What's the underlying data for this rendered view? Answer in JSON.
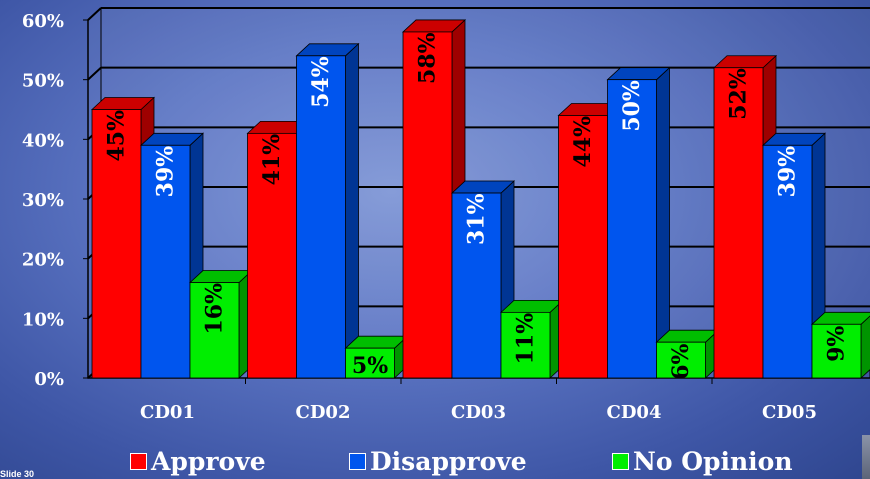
{
  "chart_data": {
    "type": "bar",
    "categories": [
      "CD01",
      "CD02",
      "CD03",
      "CD04",
      "CD05"
    ],
    "series": [
      {
        "name": "Approve",
        "values": [
          45,
          41,
          58,
          44,
          52
        ],
        "labels": [
          "45%",
          "41%",
          "58%",
          "44%",
          "52%"
        ],
        "color": "#ff0000"
      },
      {
        "name": "Disapprove",
        "values": [
          39,
          54,
          31,
          50,
          39
        ],
        "labels": [
          "39%",
          "54%",
          "31%",
          "50%",
          "39%"
        ],
        "color": "#0055ee"
      },
      {
        "name": "No Opinion",
        "values": [
          16,
          5,
          11,
          6,
          9
        ],
        "labels": [
          "16%",
          "5%",
          "11%",
          "6%",
          "9%"
        ],
        "color": "#00ee00"
      }
    ],
    "ylim": [
      0,
      60
    ],
    "yticks": [
      "0%",
      "10%",
      "20%",
      "30%",
      "40%",
      "50%",
      "60%"
    ],
    "grid": true,
    "legend_position": "bottom"
  },
  "slide_label": "Slide 30"
}
